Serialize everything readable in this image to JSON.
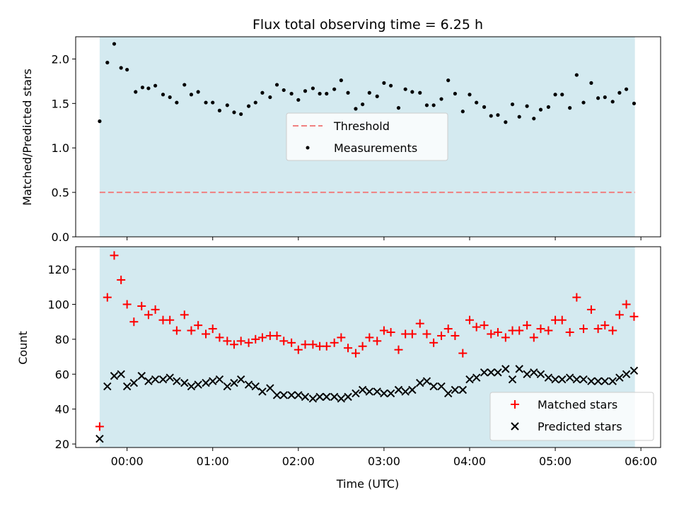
{
  "title": "Flux total observing time = 6.25 h",
  "chart_data": [
    {
      "panel": "top",
      "type": "scatter",
      "ylabel": "Matched/Predicted stars",
      "ylim": [
        0,
        2.25
      ],
      "yticks": [
        0.0,
        0.5,
        1.0,
        1.5,
        2.0
      ],
      "ytick_labels": [
        "0.0",
        "0.5",
        "1.0",
        "1.5",
        "2.0"
      ],
      "xlim": [
        -0.6,
        6.23
      ],
      "grid": false,
      "legend_position": "center",
      "observing_window": [
        -0.32,
        5.93
      ],
      "colors": {
        "band": "#d4eaf0",
        "threshold": "#f08080",
        "measurements": "#000000"
      },
      "threshold": {
        "name": "Threshold",
        "value": 0.5
      },
      "series": [
        {
          "name": "Measurements",
          "x": [
            -0.32,
            -0.23,
            -0.15,
            -0.07,
            0.0,
            0.1,
            0.18,
            0.25,
            0.33,
            0.42,
            0.5,
            0.58,
            0.67,
            0.75,
            0.83,
            0.92,
            1.0,
            1.08,
            1.17,
            1.25,
            1.33,
            1.42,
            1.5,
            1.58,
            1.67,
            1.75,
            1.83,
            1.92,
            2.0,
            2.08,
            2.17,
            2.25,
            2.33,
            2.42,
            2.5,
            2.58,
            2.67,
            2.75,
            2.83,
            2.92,
            3.0,
            3.08,
            3.17,
            3.25,
            3.33,
            3.42,
            3.5,
            3.58,
            3.67,
            3.75,
            3.83,
            3.92,
            4.0,
            4.08,
            4.17,
            4.25,
            4.33,
            4.42,
            4.5,
            4.58,
            4.67,
            4.75,
            4.83,
            4.92,
            5.0,
            5.08,
            5.17,
            5.25,
            5.33,
            5.42,
            5.5,
            5.58,
            5.67,
            5.75,
            5.83,
            5.92
          ],
          "y": [
            1.3,
            1.96,
            2.17,
            1.9,
            1.88,
            1.63,
            1.68,
            1.67,
            1.7,
            1.6,
            1.57,
            1.51,
            1.71,
            1.6,
            1.63,
            1.51,
            1.51,
            1.42,
            1.48,
            1.4,
            1.38,
            1.47,
            1.51,
            1.62,
            1.57,
            1.71,
            1.65,
            1.61,
            1.54,
            1.64,
            1.67,
            1.61,
            1.61,
            1.66,
            1.76,
            1.62,
            1.44,
            1.49,
            1.62,
            1.58,
            1.73,
            1.7,
            1.45,
            1.66,
            1.63,
            1.62,
            1.48,
            1.48,
            1.55,
            1.76,
            1.61,
            1.41,
            1.6,
            1.51,
            1.46,
            1.36,
            1.37,
            1.29,
            1.49,
            1.35,
            1.47,
            1.33,
            1.43,
            1.46,
            1.6,
            1.6,
            1.45,
            1.82,
            1.51,
            1.73,
            1.56,
            1.57,
            1.52,
            1.62,
            1.66,
            1.5
          ]
        }
      ],
      "legend": [
        "Threshold",
        "Measurements"
      ]
    },
    {
      "panel": "bottom",
      "type": "scatter",
      "xlabel": "Time (UTC)",
      "ylabel": "Count",
      "ylim": [
        18,
        133
      ],
      "yticks": [
        20,
        40,
        60,
        80,
        100,
        120
      ],
      "ytick_labels": [
        "20",
        "40",
        "60",
        "80",
        "100",
        "120"
      ],
      "xlim": [
        -0.6,
        6.23
      ],
      "xticks": [
        0,
        1,
        2,
        3,
        4,
        5,
        6
      ],
      "xtick_labels": [
        "00:00",
        "01:00",
        "02:00",
        "03:00",
        "04:00",
        "05:00",
        "06:00"
      ],
      "grid": false,
      "legend_position": "lower right",
      "observing_window": [
        -0.32,
        5.93
      ],
      "colors": {
        "matched": "#ff0000",
        "predicted": "#000000"
      },
      "series": [
        {
          "name": "Matched stars",
          "marker": "+",
          "x": [
            -0.32,
            -0.23,
            -0.15,
            -0.07,
            0.0,
            0.08,
            0.17,
            0.25,
            0.33,
            0.42,
            0.5,
            0.58,
            0.67,
            0.75,
            0.83,
            0.92,
            1.0,
            1.08,
            1.17,
            1.25,
            1.33,
            1.42,
            1.5,
            1.58,
            1.67,
            1.75,
            1.83,
            1.92,
            2.0,
            2.08,
            2.17,
            2.25,
            2.33,
            2.42,
            2.5,
            2.58,
            2.67,
            2.75,
            2.83,
            2.92,
            3.0,
            3.08,
            3.17,
            3.25,
            3.33,
            3.42,
            3.5,
            3.58,
            3.67,
            3.75,
            3.83,
            3.92,
            4.0,
            4.08,
            4.17,
            4.25,
            4.33,
            4.42,
            4.5,
            4.58,
            4.67,
            4.75,
            4.83,
            4.92,
            5.0,
            5.08,
            5.17,
            5.25,
            5.33,
            5.42,
            5.5,
            5.58,
            5.67,
            5.75,
            5.83,
            5.92
          ],
          "y": [
            30,
            104,
            128,
            114,
            100,
            90,
            99,
            94,
            97,
            91,
            91,
            85,
            94,
            85,
            88,
            83,
            86,
            81,
            79,
            77,
            79,
            78,
            80,
            81,
            82,
            82,
            79,
            78,
            74,
            77,
            77,
            76,
            76,
            78,
            81,
            75,
            72,
            76,
            81,
            79,
            85,
            84,
            74,
            83,
            83,
            89,
            83,
            78,
            82,
            86,
            82,
            72,
            91,
            87,
            88,
            83,
            84,
            81,
            85,
            85,
            88,
            81,
            86,
            85,
            91,
            91,
            84,
            104,
            86,
            97,
            86,
            88,
            85,
            94,
            100,
            93
          ]
        },
        {
          "name": "Predicted stars",
          "marker": "x",
          "x": [
            -0.32,
            -0.23,
            -0.15,
            -0.07,
            0.0,
            0.08,
            0.17,
            0.25,
            0.33,
            0.42,
            0.5,
            0.58,
            0.67,
            0.75,
            0.83,
            0.92,
            1.0,
            1.08,
            1.17,
            1.25,
            1.33,
            1.42,
            1.5,
            1.58,
            1.67,
            1.75,
            1.83,
            1.92,
            2.0,
            2.08,
            2.17,
            2.25,
            2.33,
            2.42,
            2.5,
            2.58,
            2.67,
            2.75,
            2.83,
            2.92,
            3.0,
            3.08,
            3.17,
            3.25,
            3.33,
            3.42,
            3.5,
            3.58,
            3.67,
            3.75,
            3.83,
            3.92,
            4.0,
            4.08,
            4.17,
            4.25,
            4.33,
            4.42,
            4.5,
            4.58,
            4.67,
            4.75,
            4.83,
            4.92,
            5.0,
            5.08,
            5.17,
            5.25,
            5.33,
            5.42,
            5.5,
            5.58,
            5.67,
            5.75,
            5.83,
            5.92
          ],
          "y": [
            23,
            53,
            59,
            60,
            53,
            55,
            59,
            56,
            57,
            57,
            58,
            56,
            55,
            53,
            54,
            55,
            56,
            57,
            53,
            55,
            57,
            54,
            53,
            50,
            52,
            48,
            48,
            48,
            48,
            47,
            46,
            47,
            47,
            47,
            46,
            47,
            49,
            51,
            50,
            50,
            49,
            49,
            51,
            50,
            51,
            55,
            56,
            53,
            53,
            49,
            51,
            51,
            57,
            58,
            61,
            61,
            61,
            63,
            57,
            63,
            60,
            61,
            60,
            58,
            57,
            57,
            58,
            57,
            57,
            56,
            56,
            56,
            56,
            58,
            60,
            62
          ]
        }
      ],
      "legend": [
        "Matched stars",
        "Predicted stars"
      ]
    }
  ]
}
